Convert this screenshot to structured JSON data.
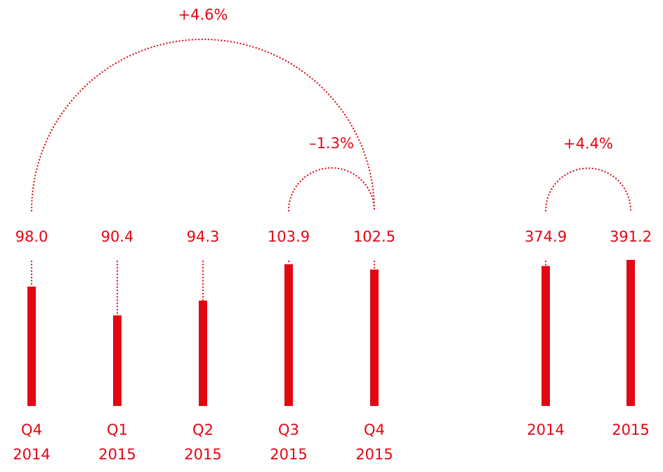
{
  "chart_data": [
    {
      "type": "bar",
      "categories": [
        [
          "Q4",
          "2014"
        ],
        [
          "Q1",
          "2015"
        ],
        [
          "Q2",
          "2015"
        ],
        [
          "Q3",
          "2015"
        ],
        [
          "Q4",
          "2015"
        ]
      ],
      "values": [
        98.0,
        90.4,
        94.3,
        103.9,
        102.5
      ],
      "value_labels": [
        "98.0",
        "90.4",
        "94.3",
        "103.9",
        "102.5"
      ],
      "color": "#e30613",
      "ylim": [
        66.5,
        106.9
      ],
      "annotations": [
        {
          "from": 0,
          "to": 4,
          "text": "+4.6%"
        },
        {
          "from": 3,
          "to": 4,
          "text": "–1.3%"
        }
      ]
    },
    {
      "type": "bar",
      "categories": [
        "2014",
        "2015"
      ],
      "values": [
        374.9,
        391.2
      ],
      "color": "#e30613",
      "ylim": [
        0,
        410
      ],
      "annotations": [
        {
          "from": 0,
          "to": 1,
          "text": "+4.4%"
        }
      ]
    }
  ]
}
